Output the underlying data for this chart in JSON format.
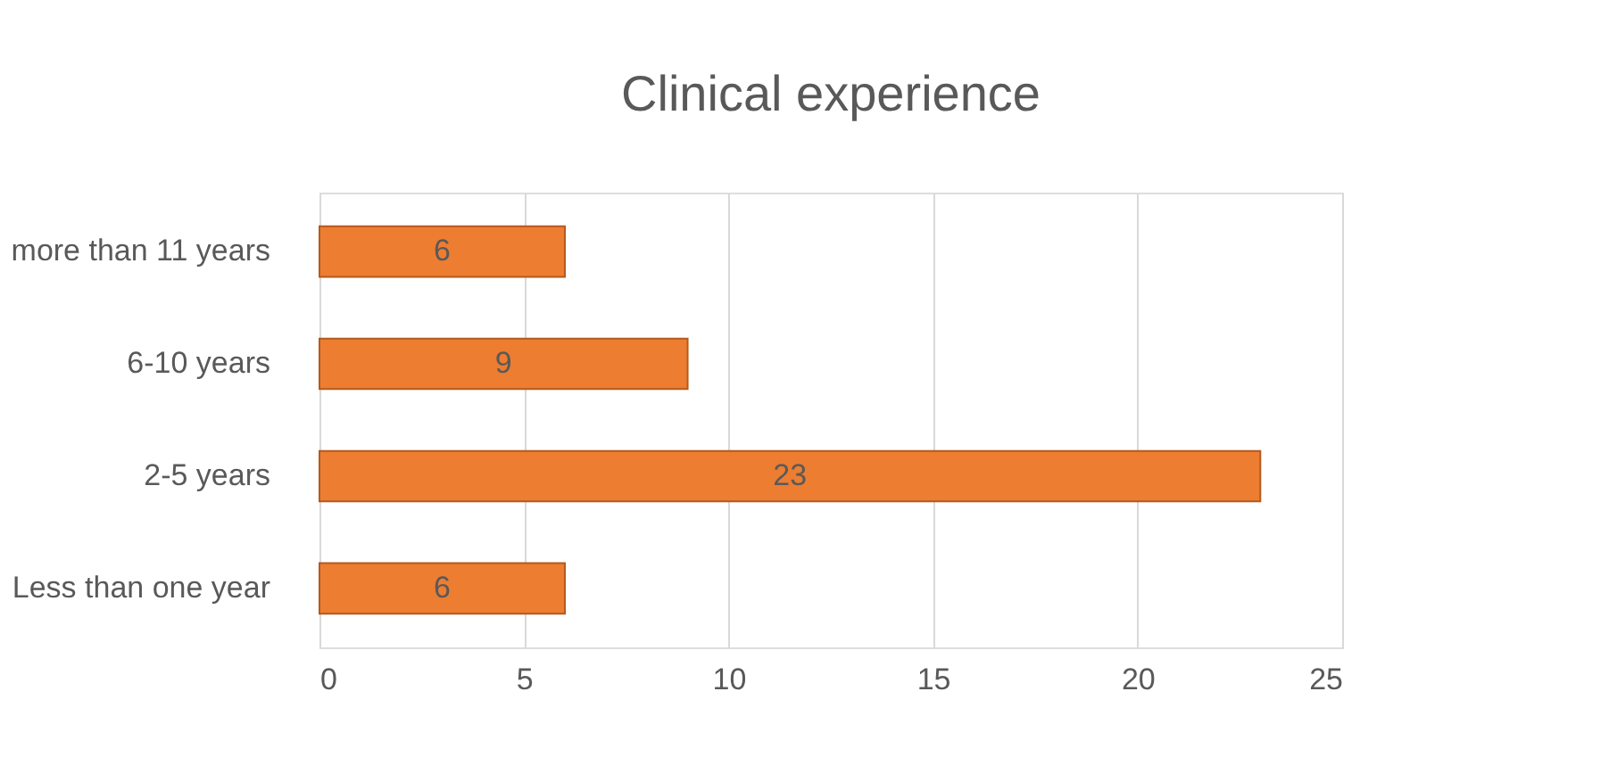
{
  "chart_data": {
    "type": "bar",
    "orientation": "horizontal",
    "title": "Clinical experience",
    "categories": [
      "more than 11 years",
      "6-10 years",
      "2-5 years",
      "Less than one year"
    ],
    "values": [
      6,
      9,
      23,
      6
    ],
    "color": "#ed7d31",
    "xlim": [
      0,
      25
    ],
    "xticks": [
      0,
      5,
      10,
      15,
      20,
      25
    ],
    "grid": "x",
    "data_labels": true
  }
}
